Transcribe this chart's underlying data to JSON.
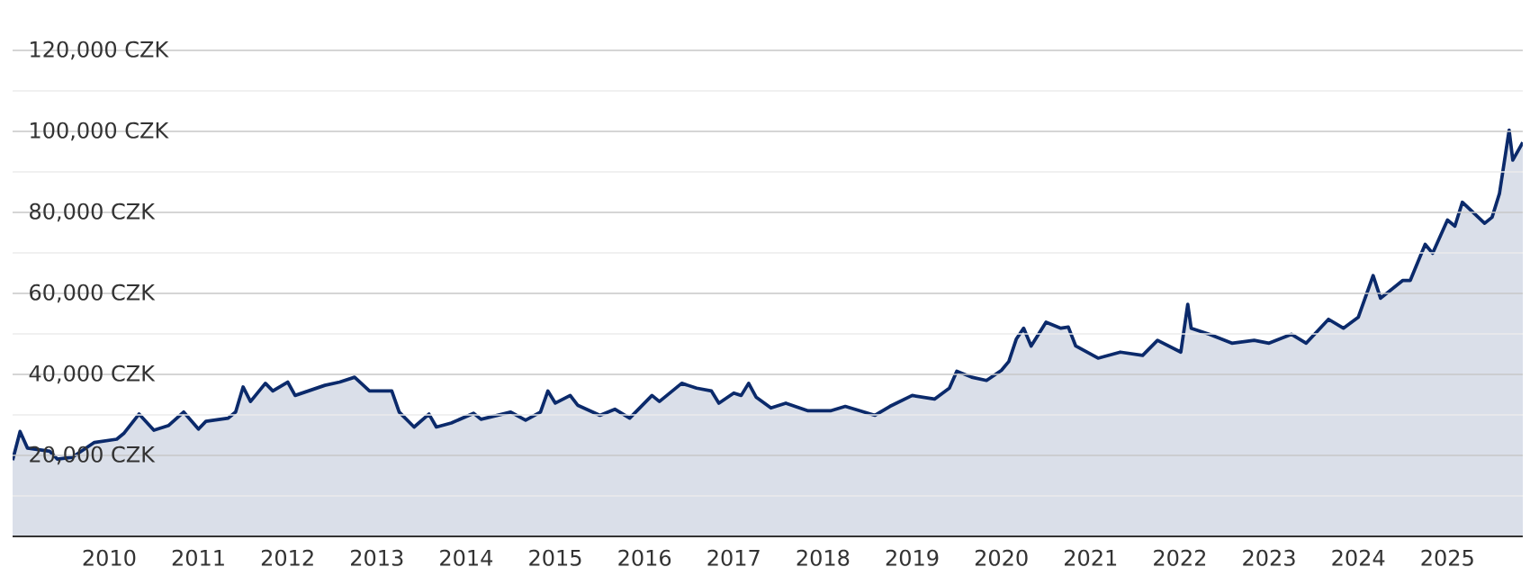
{
  "chart_data": {
    "type": "area",
    "grid": "y",
    "xlim": [
      "2008-12",
      "2025-11-05"
    ],
    "ylim": [
      0,
      120000
    ],
    "xticks": [
      "2010",
      "2011",
      "2012",
      "2013",
      "2014",
      "2015",
      "2016",
      "2017",
      "2018",
      "2019",
      "2020",
      "2021",
      "2022",
      "2023",
      "2024",
      "2025"
    ],
    "yticks": [
      {
        "value": 10000,
        "label": null
      },
      {
        "value": 20000,
        "label": "20,000 CZK"
      },
      {
        "value": 30000,
        "label": null
      },
      {
        "value": 40000,
        "label": "40,000 CZK"
      },
      {
        "value": 50000,
        "label": null
      },
      {
        "value": 60000,
        "label": "60,000 CZK"
      },
      {
        "value": 70000,
        "label": null
      },
      {
        "value": 80000,
        "label": "80,000 CZK"
      },
      {
        "value": 90000,
        "label": null
      },
      {
        "value": 100000,
        "label": "100,000 CZK"
      },
      {
        "value": 110000,
        "label": null
      },
      {
        "value": 120000,
        "label": "120,000 CZK"
      }
    ],
    "x": [
      "2008-12",
      "2009-01",
      "2009-02",
      "2009-05",
      "2009-06",
      "2009-08",
      "2009-11",
      "2010-02",
      "2010-03",
      "2010-05",
      "2010-07",
      "2010-09",
      "2010-11",
      "2011-01",
      "2011-02",
      "2011-05",
      "2011-06",
      "2011-07",
      "2011-08",
      "2011-10",
      "2011-11",
      "2012-01",
      "2012-02",
      "2012-06",
      "2012-08",
      "2012-10",
      "2012-12",
      "2013-03",
      "2013-04",
      "2013-06",
      "2013-08",
      "2013-09",
      "2013-11",
      "2014-02",
      "2014-03",
      "2014-07",
      "2014-09",
      "2014-11",
      "2014-12",
      "2015-01",
      "2015-03",
      "2015-04",
      "2015-07",
      "2015-09",
      "2015-11",
      "2016-02",
      "2016-03",
      "2016-04",
      "2016-06",
      "2016-08",
      "2016-10",
      "2016-11",
      "2017-01",
      "2017-02",
      "2017-03",
      "2017-04",
      "2017-06",
      "2017-08",
      "2017-11",
      "2018-02",
      "2018-04",
      "2018-08",
      "2018-10",
      "2019-01",
      "2019-04",
      "2019-06",
      "2019-07",
      "2019-09",
      "2019-11",
      "2020-01",
      "2020-02",
      "2020-03",
      "2020-04",
      "2020-05",
      "2020-07",
      "2020-09",
      "2020-10",
      "2020-11",
      "2021-02",
      "2021-05",
      "2021-08",
      "2021-10",
      "2022-01-05",
      "2022-02-03",
      "2022-02-17",
      "2022-05",
      "2022-08",
      "2022-11",
      "2023-01",
      "2023-04",
      "2023-06",
      "2023-09",
      "2023-11",
      "2024-01",
      "2024-03",
      "2024-04",
      "2024-07",
      "2024-08",
      "2024-10",
      "2024-11",
      "2025-01",
      "2025-02",
      "2025-03",
      "2025-06",
      "2025-07",
      "2025-08",
      "2025-09-10",
      "2025-09-25",
      "2025-11-05"
    ],
    "series": [
      {
        "color": "#0b2a6b",
        "values": [
          18800,
          25900,
          21800,
          21000,
          19100,
          19500,
          23200,
          24000,
          25500,
          30200,
          26200,
          27400,
          30700,
          26500,
          28400,
          29200,
          30700,
          36900,
          33300,
          37800,
          35900,
          38100,
          34800,
          37300,
          38100,
          39300,
          35900,
          35900,
          30700,
          27000,
          30200,
          27000,
          28000,
          30400,
          28900,
          30700,
          28700,
          30700,
          35900,
          32900,
          34800,
          32400,
          29900,
          31400,
          29200,
          34800,
          33300,
          34800,
          37800,
          36600,
          35900,
          32900,
          35400,
          34800,
          37800,
          34400,
          31700,
          32900,
          31000,
          31000,
          32100,
          29900,
          32100,
          34800,
          33900,
          36600,
          40800,
          39300,
          38500,
          41000,
          43200,
          48700,
          51400,
          47000,
          52900,
          51400,
          51700,
          47000,
          44000,
          45500,
          44700,
          48400,
          45500,
          57300,
          51400,
          49900,
          47700,
          48400,
          47700,
          49900,
          47700,
          53600,
          51400,
          54100,
          64400,
          58800,
          63200,
          63200,
          72100,
          69900,
          78100,
          76600,
          82500,
          77300,
          78800,
          84700,
          100300,
          92900,
          97300
        ]
      }
    ]
  }
}
